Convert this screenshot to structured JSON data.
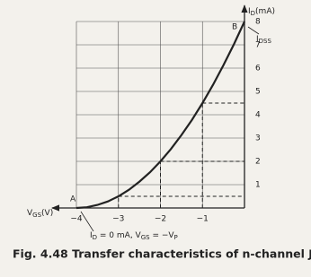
{
  "chart_data": {
    "type": "line",
    "caption": "Fig. 4.48 Transfer characteristics of n-channel JFET",
    "ylabel": [
      "I",
      "D",
      "(mA)"
    ],
    "xlabel": [
      "V",
      "GS",
      "(V)"
    ],
    "xlim": [
      -4,
      0
    ],
    "ylim": [
      0,
      8
    ],
    "xticks": [
      {
        "value": -4,
        "label": "−4"
      },
      {
        "value": -3,
        "label": "−3"
      },
      {
        "value": -2,
        "label": "−2"
      },
      {
        "value": -1,
        "label": "−1"
      }
    ],
    "yticks": [
      1,
      2,
      3,
      4,
      5,
      6,
      7,
      8
    ],
    "grid": true,
    "x": [
      -4,
      -3.75,
      -3.5,
      -3.25,
      -3,
      -2.75,
      -2.5,
      -2.25,
      -2,
      -1.75,
      -1.5,
      -1.25,
      -1,
      -0.75,
      -0.5,
      -0.25,
      0
    ],
    "series": [
      {
        "color": "#222222",
        "values": [
          0,
          0.03,
          0.13,
          0.28,
          0.5,
          0.78,
          1.13,
          1.53,
          2,
          2.53,
          3.13,
          3.78,
          4.5,
          5.28,
          6.13,
          7.03,
          8
        ]
      }
    ],
    "dashed_points": {
      "x": [
        -3,
        -2,
        -1
      ],
      "y": [
        0.5,
        2,
        4.5
      ]
    },
    "point_labels": {
      "top": "B",
      "bottom": "A"
    },
    "idss_label": [
      "I",
      "DSS"
    ],
    "annotation": [
      "I",
      "D",
      " = 0 mA, V",
      "GS",
      " = −V",
      "P"
    ]
  }
}
